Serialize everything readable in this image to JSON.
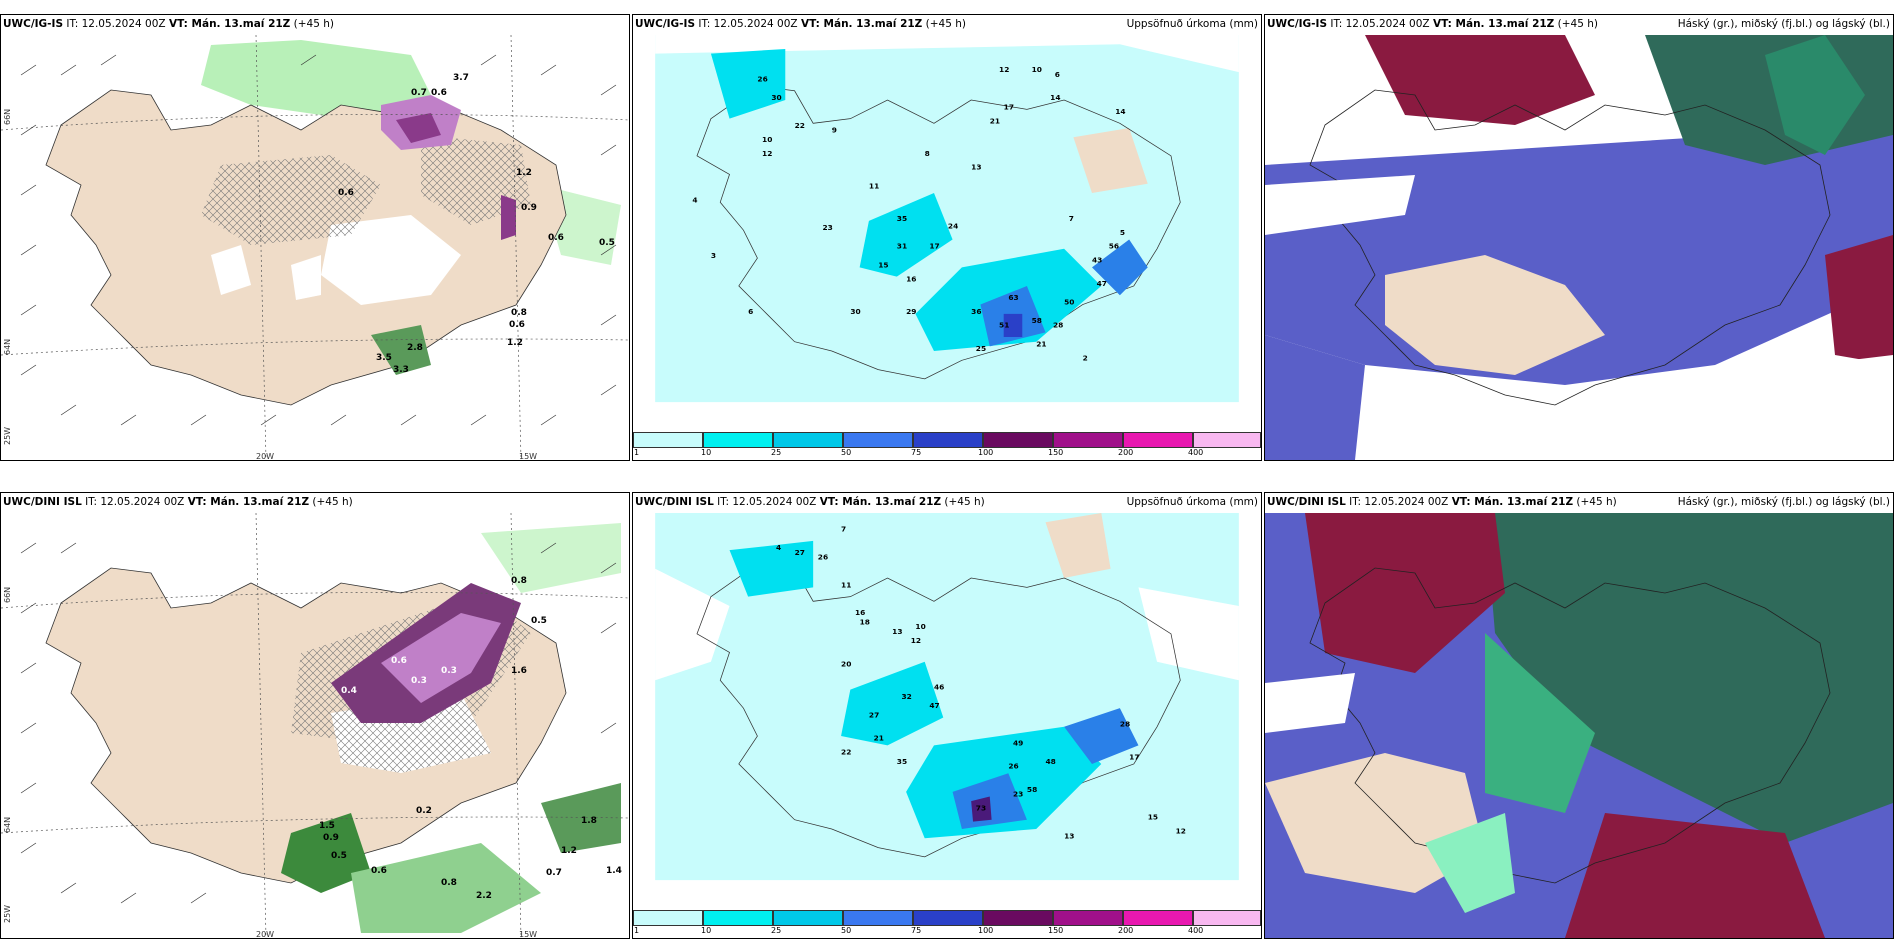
{
  "header_common": {
    "it_prefix": "IT: ",
    "it_value": "12.05.2024 00Z",
    "vt_prefix": "VT: ",
    "vt_value": "Mán. 13.maí 21Z",
    "lead": "(+45 h)"
  },
  "rows": [
    {
      "model": "UWC/IG-IS"
    },
    {
      "model": "UWC/DINI ISL"
    }
  ],
  "precip_title": "Uppsöfnuð úrkoma (mm)",
  "cloud_title": "Háský (gr.), miðský (fj.bl.) og lágský (bl.)",
  "lon_labels": [
    "20W",
    "15W"
  ],
  "lat_labels": [
    "66N",
    "64N",
    "25W"
  ],
  "legend_ticks": [
    "1",
    "10",
    "25",
    "50",
    "75",
    "100",
    "150",
    "200",
    "400"
  ],
  "legend_colors": [
    "#c8fcfc",
    "#00f0f0",
    "#00c8e8",
    "#3a78f0",
    "#2a40c8",
    "#6a0a60",
    "#a0108a",
    "#e818b0",
    "#f8b8f0"
  ],
  "top_precip_labels": [
    "12",
    "10",
    "6",
    "14",
    "17",
    "21",
    "26",
    "30",
    "22",
    "11",
    "10",
    "12",
    "9",
    "8",
    "13",
    "7",
    "5",
    "4",
    "3",
    "2",
    "6",
    "23",
    "15",
    "16",
    "17",
    "24",
    "35",
    "31",
    "30",
    "29",
    "36",
    "51",
    "58",
    "63",
    "25",
    "21",
    "28",
    "43",
    "47",
    "56",
    "50",
    "14"
  ],
  "top_snow_labels": [
    "0.6",
    "1.2",
    "0.9",
    "0.6",
    "0.5",
    "0.8",
    "0.6",
    "1.2",
    "2.8",
    "3.5",
    "3.3",
    "0.7",
    "0.6",
    "3.7"
  ],
  "bottom_precip_labels": [
    "7",
    "4",
    "26",
    "27",
    "16",
    "11",
    "18",
    "13",
    "10",
    "12",
    "20",
    "32",
    "46",
    "47",
    "27",
    "21",
    "22",
    "35",
    "49",
    "58",
    "73",
    "26",
    "23",
    "48",
    "28",
    "17",
    "13",
    "12",
    "15"
  ],
  "bottom_snow_labels": [
    "0.8",
    "0.5",
    "0.4",
    "0.6",
    "0.3",
    "1.6",
    "1.5",
    "0.9",
    "0.5",
    "0.7",
    "1.2",
    "1.4",
    "1.8",
    "0.2",
    "2.2",
    "0.8",
    "0.6",
    "0.3"
  ]
}
